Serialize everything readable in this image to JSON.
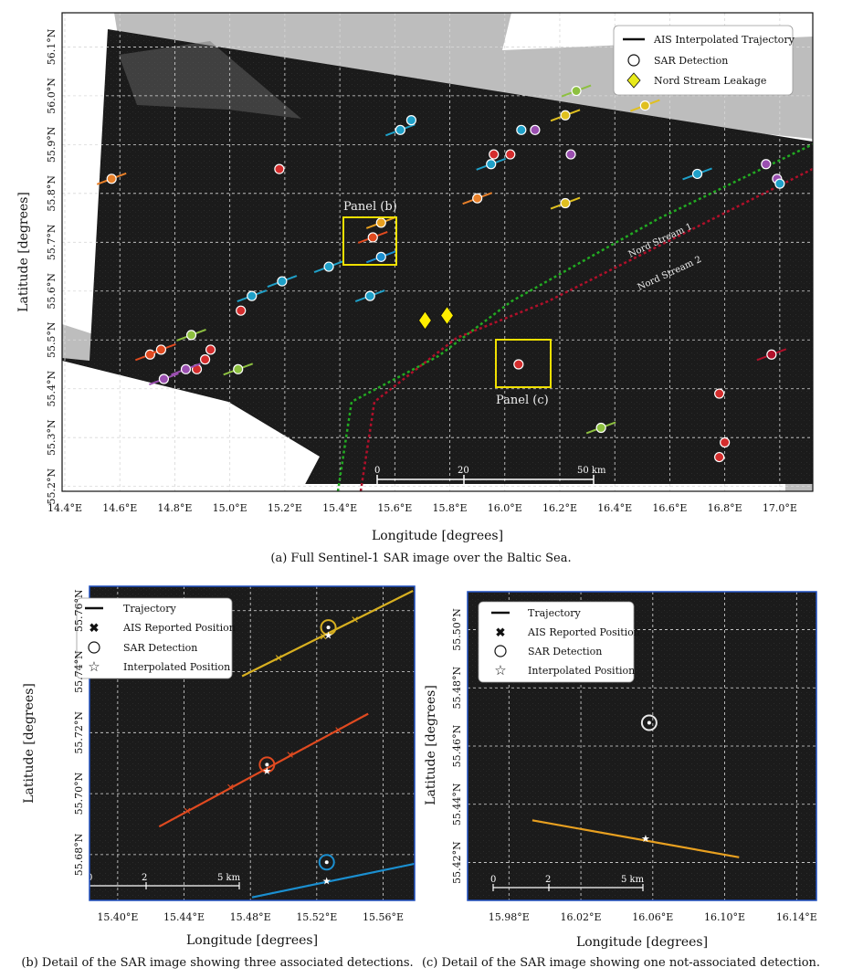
{
  "panel_a": {
    "caption": "(a) Full Sentinel-1 SAR image over the Baltic Sea.",
    "legend": [
      "AIS Interpolated Trajectory",
      "SAR Detection",
      "Nord Stream Leakage"
    ],
    "panel_b_label": "Panel (b)",
    "panel_c_label": "Panel (c)",
    "nord_stream_1": "Nord Stream 1",
    "nord_stream_2": "Nord Stream 2",
    "scale_labels": [
      "0",
      "20",
      "50 km"
    ]
  },
  "panel_b": {
    "caption": "(b) Detail of the SAR image showing three associated detections.",
    "legend": [
      "Trajectory",
      "AIS Reported Position",
      "SAR Detection",
      "Interpolated Position"
    ],
    "scale_labels": [
      "0",
      "2",
      "5 km"
    ]
  },
  "panel_c": {
    "caption": "(c) Detail of the SAR image showing one not-associated detection.",
    "legend": [
      "Trajectory",
      "AIS Reported Position",
      "SAR Detection",
      "Interpolated Position"
    ],
    "scale_labels": [
      "0",
      "2",
      "5 km"
    ]
  },
  "colors": {
    "sar_bg": "#1c1c1c",
    "land": "#bdbdbd",
    "yellow_box": "#f0e000",
    "nord1": "#22aa22",
    "nord2": "#b0102a",
    "leak": "#ffee00",
    "traj_yellow": "#d8b020",
    "traj_red": "#e04a20",
    "traj_blue": "#1b8fd0",
    "traj_orange": "#e8a020",
    "frame_blue": "#1f4fbf"
  },
  "chart_data": [
    {
      "id": "a",
      "type": "scatter",
      "title": "Full Sentinel-1 SAR image over the Baltic Sea",
      "xlabel": "Longitude [degrees]",
      "ylabel": "Latitude [degrees]",
      "xticks": [
        "14.4°E",
        "14.6°E",
        "14.8°E",
        "15.0°E",
        "15.2°E",
        "15.4°E",
        "15.6°E",
        "15.8°E",
        "16.0°E",
        "16.2°E",
        "16.4°E",
        "16.6°E",
        "16.8°E",
        "17.0°E"
      ],
      "xtick_values": [
        14.4,
        14.6,
        14.8,
        15.0,
        15.2,
        15.4,
        15.6,
        15.8,
        16.0,
        16.2,
        16.4,
        16.6,
        16.8,
        17.0
      ],
      "yticks": [
        "55.2°N",
        "55.3°N",
        "55.4°N",
        "55.5°N",
        "55.6°N",
        "55.7°N",
        "55.8°N",
        "55.9°N",
        "56.0°N",
        "56.1°N"
      ],
      "ytick_values": [
        55.2,
        55.3,
        55.4,
        55.5,
        55.6,
        55.7,
        55.8,
        55.9,
        56.0,
        56.1
      ],
      "xlim": [
        14.39,
        17.12
      ],
      "ylim": [
        55.19,
        56.17
      ],
      "detections": [
        {
          "lon": 14.57,
          "lat": 55.83,
          "c": "#e8802a",
          "traj": true
        },
        {
          "lon": 15.18,
          "lat": 55.85,
          "c": "#d42d2d",
          "traj": false
        },
        {
          "lon": 15.62,
          "lat": 55.93,
          "c": "#1fa0c8",
          "traj": true
        },
        {
          "lon": 15.66,
          "lat": 55.95,
          "c": "#1fa0c8",
          "traj": false
        },
        {
          "lon": 15.55,
          "lat": 55.74,
          "c": "#e8a020",
          "traj": true
        },
        {
          "lon": 15.52,
          "lat": 55.71,
          "c": "#e04a20",
          "traj": true
        },
        {
          "lon": 15.55,
          "lat": 55.67,
          "c": "#1b8fd0",
          "traj": true
        },
        {
          "lon": 15.36,
          "lat": 55.65,
          "c": "#1fa0c8",
          "traj": true
        },
        {
          "lon": 15.19,
          "lat": 55.62,
          "c": "#1fa0c8",
          "traj": true
        },
        {
          "lon": 15.08,
          "lat": 55.59,
          "c": "#1fa0c8",
          "traj": true
        },
        {
          "lon": 15.04,
          "lat": 55.56,
          "c": "#d42d2d",
          "traj": false
        },
        {
          "lon": 15.51,
          "lat": 55.59,
          "c": "#1fa0c8",
          "traj": true
        },
        {
          "lon": 14.71,
          "lat": 55.47,
          "c": "#e04a20",
          "traj": true
        },
        {
          "lon": 14.75,
          "lat": 55.48,
          "c": "#e04a20",
          "traj": true
        },
        {
          "lon": 14.86,
          "lat": 55.51,
          "c": "#8dc040",
          "traj": true
        },
        {
          "lon": 14.93,
          "lat": 55.48,
          "c": "#d42d2d",
          "traj": false
        },
        {
          "lon": 14.91,
          "lat": 55.46,
          "c": "#d42d2d",
          "traj": false
        },
        {
          "lon": 14.88,
          "lat": 55.44,
          "c": "#d42d2d",
          "traj": false
        },
        {
          "lon": 14.84,
          "lat": 55.44,
          "c": "#9a4fb0",
          "traj": true
        },
        {
          "lon": 14.76,
          "lat": 55.42,
          "c": "#9a4fb0",
          "traj": true
        },
        {
          "lon": 15.03,
          "lat": 55.44,
          "c": "#8dc040",
          "traj": true
        },
        {
          "lon": 15.9,
          "lat": 55.79,
          "c": "#e8802a",
          "traj": true
        },
        {
          "lon": 15.95,
          "lat": 55.86,
          "c": "#1fa0c8",
          "traj": true
        },
        {
          "lon": 15.96,
          "lat": 55.88,
          "c": "#d42d2d",
          "traj": false
        },
        {
          "lon": 16.02,
          "lat": 55.88,
          "c": "#d42d2d",
          "traj": false
        },
        {
          "lon": 16.06,
          "lat": 55.93,
          "c": "#1fa0c8",
          "traj": false
        },
        {
          "lon": 16.11,
          "lat": 55.93,
          "c": "#9a4fb0",
          "traj": false
        },
        {
          "lon": 16.22,
          "lat": 55.96,
          "c": "#e0c020",
          "traj": true
        },
        {
          "lon": 16.26,
          "lat": 56.01,
          "c": "#8dc040",
          "traj": true
        },
        {
          "lon": 16.24,
          "lat": 55.88,
          "c": "#9a4fb0",
          "traj": false
        },
        {
          "lon": 16.22,
          "lat": 55.78,
          "c": "#e0c020",
          "traj": true
        },
        {
          "lon": 16.51,
          "lat": 55.98,
          "c": "#e0c020",
          "traj": true
        },
        {
          "lon": 16.7,
          "lat": 55.84,
          "c": "#1fa0c8",
          "traj": true
        },
        {
          "lon": 16.95,
          "lat": 55.86,
          "c": "#9a4fb0",
          "traj": false
        },
        {
          "lon": 16.99,
          "lat": 55.83,
          "c": "#9a4fb0",
          "traj": false
        },
        {
          "lon": 17.0,
          "lat": 55.82,
          "c": "#1fa0c8",
          "traj": false
        },
        {
          "lon": 16.05,
          "lat": 55.45,
          "c": "#d42d2d",
          "traj": false
        },
        {
          "lon": 16.97,
          "lat": 55.47,
          "c": "#b0102a",
          "traj": true
        },
        {
          "lon": 16.35,
          "lat": 55.32,
          "c": "#8dc040",
          "traj": true
        },
        {
          "lon": 16.78,
          "lat": 55.39,
          "c": "#d42d2d",
          "traj": false
        },
        {
          "lon": 16.8,
          "lat": 55.29,
          "c": "#d42d2d",
          "traj": false
        },
        {
          "lon": 16.78,
          "lat": 55.26,
          "c": "#d42d2d",
          "traj": false
        }
      ],
      "leakages": [
        {
          "lon": 15.71,
          "lat": 55.54
        },
        {
          "lon": 15.79,
          "lat": 55.55
        }
      ]
    },
    {
      "id": "b",
      "type": "line",
      "title": "Detail of the SAR image showing three associated detections",
      "xlabel": "Longitude [degrees]",
      "ylabel": "Latitude [degrees]",
      "xticks": [
        "15.40°E",
        "15.44°E",
        "15.48°E",
        "15.52°E",
        "15.56°E"
      ],
      "xtick_values": [
        15.4,
        15.44,
        15.48,
        15.52,
        15.56
      ],
      "yticks": [
        "55.68°N",
        "55.70°N",
        "55.72°N",
        "55.74°N",
        "55.76°N"
      ],
      "ytick_values": [
        55.68,
        55.7,
        55.72,
        55.74,
        55.76
      ],
      "xlim": [
        15.383,
        15.579
      ],
      "ylim": [
        55.665,
        55.768
      ],
      "series": [
        {
          "name": "yellow",
          "color": "#d8b020",
          "x": [
            15.475,
            15.578
          ],
          "y": [
            55.7385,
            55.7665
          ],
          "ais": [
            [
              15.497,
              55.7445
            ],
            [
              15.524,
              55.7515
            ],
            [
              15.543,
              55.757
            ]
          ],
          "sar": [
            [
              15.527,
              55.7545
            ]
          ],
          "interp": [
            [
              15.527,
              55.752
            ]
          ]
        },
        {
          "name": "red",
          "color": "#e04a20",
          "x": [
            15.425,
            15.551
          ],
          "y": [
            55.6892,
            55.7262
          ],
          "ais": [
            [
              15.442,
              55.6943
            ],
            [
              15.468,
              55.7021
            ],
            [
              15.504,
              55.7127
            ],
            [
              15.533,
              55.7208
            ]
          ],
          "sar": [
            [
              15.49,
              55.7095
            ]
          ],
          "interp": [
            [
              15.49,
              55.7075
            ]
          ]
        },
        {
          "name": "blue",
          "color": "#1b8fd0",
          "x": [
            15.481,
            15.579
          ],
          "y": [
            55.666,
            55.677
          ],
          "ais": [],
          "sar": [
            [
              15.526,
              55.6775
            ]
          ],
          "interp": [
            [
              15.526,
              55.6715
            ]
          ]
        }
      ]
    },
    {
      "id": "c",
      "type": "line",
      "title": "Detail of the SAR image showing one not-associated detection",
      "xlabel": "Longitude [degrees]",
      "ylabel": "Latitude [degrees]",
      "xticks": [
        "15.98°E",
        "16.02°E",
        "16.06°E",
        "16.10°E",
        "16.14°E"
      ],
      "xtick_values": [
        15.98,
        16.02,
        16.06,
        16.1,
        16.14
      ],
      "yticks": [
        "55.42°N",
        "55.44°N",
        "55.46°N",
        "55.48°N",
        "55.50°N"
      ],
      "ytick_values": [
        55.42,
        55.44,
        55.46,
        55.48,
        55.5
      ],
      "xlim": [
        15.957,
        16.151
      ],
      "ylim": [
        55.407,
        55.513
      ],
      "series": [
        {
          "name": "orange",
          "color": "#e8a020",
          "x": [
            15.993,
            16.108
          ],
          "y": [
            55.4345,
            55.4218
          ],
          "ais": [],
          "sar": [
            [
              16.058,
              55.468
            ]
          ],
          "interp": [
            [
              16.056,
              55.4283
            ]
          ]
        }
      ]
    }
  ]
}
